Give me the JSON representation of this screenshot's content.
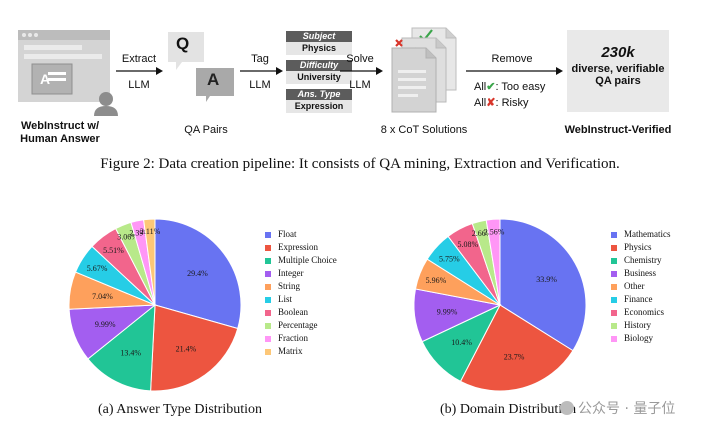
{
  "pipeline": {
    "source_label": "WebInstruct w/\nHuman Answer",
    "extract_step": {
      "action": "Extract",
      "tool": "LLM"
    },
    "qa_pairs": {
      "q": "Q",
      "a": "A",
      "label": "QA Pairs"
    },
    "tag_step": {
      "action": "Tag",
      "tool": "LLM"
    },
    "tags": [
      {
        "key": "Subject",
        "value": "Physics"
      },
      {
        "key": "Difficulty",
        "value": "University"
      },
      {
        "key": "Ans. Type",
        "value": "Expression"
      }
    ],
    "solve_step": {
      "action": "Solve",
      "tool": "LLM"
    },
    "cot_label": "8 x CoT Solutions",
    "remove_step": {
      "action": "Remove",
      "rules": [
        {
          "prefix": "All",
          "mark": "✔",
          "text": ": Too easy"
        },
        {
          "prefix": "All",
          "mark": "✘",
          "text": ": Risky"
        }
      ]
    },
    "result": {
      "count": "230k",
      "line1": "diverse, verifiable",
      "line2": "QA pairs",
      "label": "WebInstruct-Verified"
    }
  },
  "figure_caption": "Figure 2: Data creation pipeline: It consists of QA mining, Extraction and Verification.",
  "chart_data": [
    {
      "type": "pie",
      "title": "(a) Answer Type Distribution",
      "categories": [
        "Float",
        "Expression",
        "Multiple Choice",
        "Integer",
        "String",
        "List",
        "Boolean",
        "Percentage",
        "Fraction",
        "Matrix"
      ],
      "values": [
        29.4,
        21.4,
        13.4,
        9.99,
        7.04,
        5.67,
        5.51,
        3.06,
        2.39,
        2.11
      ],
      "labels": [
        "29.4%",
        "21.4%",
        "13.4%",
        "9.99%",
        "7.04%",
        "5.67%",
        "5.51%",
        "3.06%",
        "2.39%",
        "2.11%"
      ],
      "colors": [
        "#6873f2",
        "#ed5540",
        "#21c596",
        "#a35ef0",
        "#fea05c",
        "#26cde6",
        "#f2658c",
        "#b8e98a",
        "#ff96f6",
        "#fdc777"
      ],
      "legend": "right"
    },
    {
      "type": "pie",
      "title": "(b) Domain Distribution",
      "categories": [
        "Mathematics",
        "Physics",
        "Chemistry",
        "Business",
        "Other",
        "Finance",
        "Economics",
        "History",
        "Biology"
      ],
      "values": [
        33.9,
        23.7,
        10.4,
        9.99,
        5.96,
        5.75,
        5.08,
        2.66,
        2.56
      ],
      "labels": [
        "33.9%",
        "23.7%",
        "10.4%",
        "9.99%",
        "5.96%",
        "5.75%",
        "5.08%",
        "2.66%",
        "2.56%"
      ],
      "colors": [
        "#6873f2",
        "#ed5540",
        "#21c596",
        "#a35ef0",
        "#fea05c",
        "#26cde6",
        "#f2658c",
        "#b8e98a",
        "#ff96f6"
      ],
      "legend": "right"
    }
  ],
  "watermark": {
    "text": "公众号 · 量子位"
  }
}
